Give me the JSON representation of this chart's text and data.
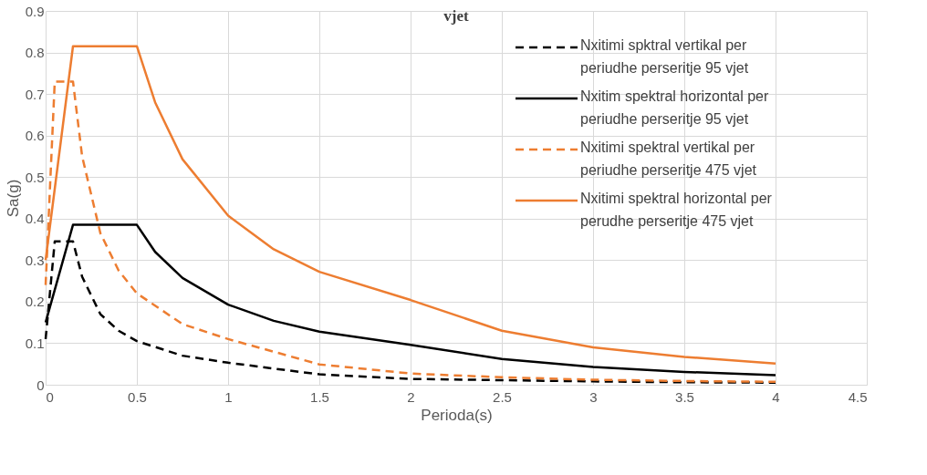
{
  "chart_data": {
    "type": "line",
    "title": "vjet",
    "xlabel": "Perioda(s)",
    "ylabel": "Sa(g)",
    "xlim": [
      0,
      4.5
    ],
    "xticks": [
      0,
      0.5,
      1,
      1.5,
      2,
      2.5,
      3,
      3.5,
      4,
      4.5
    ],
    "ylim": [
      0,
      0.9
    ],
    "yticks": [
      0,
      0.1,
      0.2,
      0.3,
      0.4,
      0.5,
      0.6,
      0.7,
      0.8,
      0.9
    ],
    "grid": true,
    "legend": "top right",
    "marker": "none",
    "series": [
      {
        "name": "Nxitimi spktral vertikal per periudhe perseritje 95 vjet",
        "color": "#000000",
        "line_style": "dashed",
        "x": [
          0,
          0.05,
          0.15,
          0.2,
          0.3,
          0.4,
          0.5,
          0.75,
          1,
          1.5,
          2,
          2.5,
          3,
          3.5,
          4
        ],
        "values": [
          0.11,
          0.345,
          0.345,
          0.26,
          0.17,
          0.13,
          0.105,
          0.07,
          0.053,
          0.025,
          0.014,
          0.011,
          0.008,
          0.006,
          0.005
        ]
      },
      {
        "name": "Nxitim spektral horizontal per periudhe perseritje 95 vjet",
        "color": "#000000",
        "line_style": "solid",
        "x": [
          0,
          0.15,
          0.5,
          0.6,
          0.75,
          1,
          1.25,
          1.5,
          2,
          2.5,
          3,
          3.5,
          4
        ],
        "values": [
          0.15,
          0.385,
          0.385,
          0.32,
          0.257,
          0.193,
          0.154,
          0.128,
          0.096,
          0.062,
          0.043,
          0.031,
          0.023
        ]
      },
      {
        "name": "Nxitimi spektral vertikal per periudhe perseritje 475 vjet",
        "color": "#ed7d31",
        "line_style": "dashed",
        "x": [
          0,
          0.05,
          0.15,
          0.2,
          0.3,
          0.4,
          0.5,
          0.75,
          1,
          1.5,
          2,
          2.5,
          3,
          3.5,
          4
        ],
        "values": [
          0.24,
          0.73,
          0.73,
          0.55,
          0.365,
          0.275,
          0.22,
          0.146,
          0.11,
          0.049,
          0.027,
          0.018,
          0.012,
          0.009,
          0.007
        ]
      },
      {
        "name": "Nxitimi spektral horizontal per perudhe perseritje 475 vjet",
        "color": "#ed7d31",
        "line_style": "solid",
        "x": [
          0,
          0.15,
          0.5,
          0.6,
          0.75,
          1,
          1.25,
          1.5,
          2,
          2.5,
          3,
          3.5,
          4
        ],
        "values": [
          0.3,
          0.815,
          0.815,
          0.68,
          0.543,
          0.407,
          0.326,
          0.272,
          0.204,
          0.13,
          0.09,
          0.067,
          0.051
        ]
      }
    ]
  }
}
